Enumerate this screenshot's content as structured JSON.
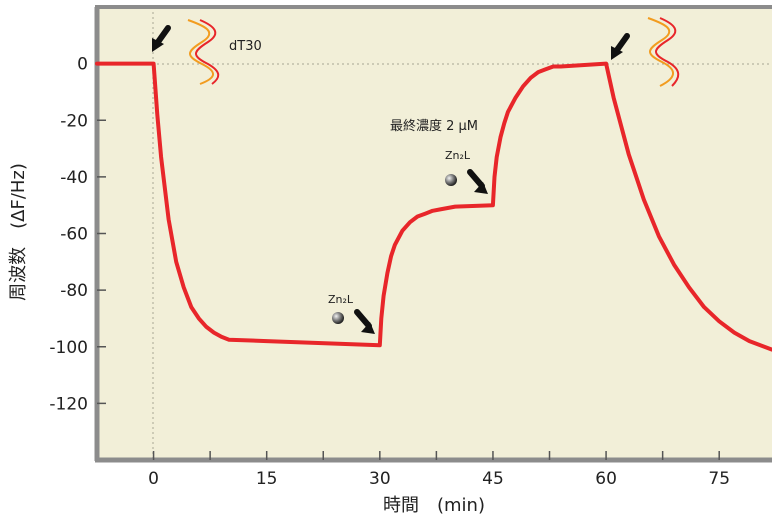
{
  "chart_data": {
    "type": "line",
    "xlabel": "時間　(min)",
    "ylabel": "周波数　(ΔF/Hz)",
    "xlim": [
      -7.5,
      82
    ],
    "ylim": [
      -140,
      20
    ],
    "x_ticks": [
      0,
      15,
      30,
      45,
      60,
      75
    ],
    "y_ticks": [
      0,
      -20,
      -40,
      -60,
      -80,
      -100,
      -120
    ],
    "grid": false,
    "background": "#F2EFD8",
    "frame_color": "#8C8C8C",
    "series_color": "#E8262A",
    "series": [
      {
        "x": [
          -7.5,
          0,
          0.5,
          1,
          2,
          3,
          4,
          5,
          6,
          7,
          8,
          9,
          10,
          15,
          20,
          25,
          30,
          30.2,
          30.5,
          31,
          31.5,
          32,
          33,
          34,
          35,
          36,
          37,
          38,
          39,
          40,
          45,
          45.2,
          45.5,
          46,
          46.5,
          47,
          48,
          49,
          50,
          51,
          52,
          53,
          54,
          60,
          61,
          63,
          65,
          67,
          69,
          71,
          73,
          75,
          77,
          79,
          82
        ],
        "y": [
          0,
          0,
          -18,
          -33,
          -55,
          -70,
          -79,
          -86,
          -90,
          -93,
          -95,
          -96.5,
          -97.5,
          -98,
          -98.5,
          -99,
          -99.5,
          -90,
          -82,
          -74,
          -68,
          -64,
          -59,
          -56,
          -54,
          -53,
          -52,
          -51.5,
          -51,
          -50.5,
          -50,
          -40,
          -33,
          -26,
          -21,
          -17,
          -12,
          -8,
          -5,
          -3,
          -2,
          -1,
          -1,
          0,
          -12,
          -32,
          -48,
          -61,
          -71,
          -79,
          -86,
          -91,
          -95,
          -98,
          -101
        ]
      }
    ],
    "annotations": {
      "probe_label": "dT30",
      "concentration_label": "最終濃度 2 μM",
      "reagent_label_1": "Zn₂L",
      "reagent_label_2": "Zn₂L"
    },
    "injection_times": [
      0,
      30,
      45,
      60
    ]
  }
}
